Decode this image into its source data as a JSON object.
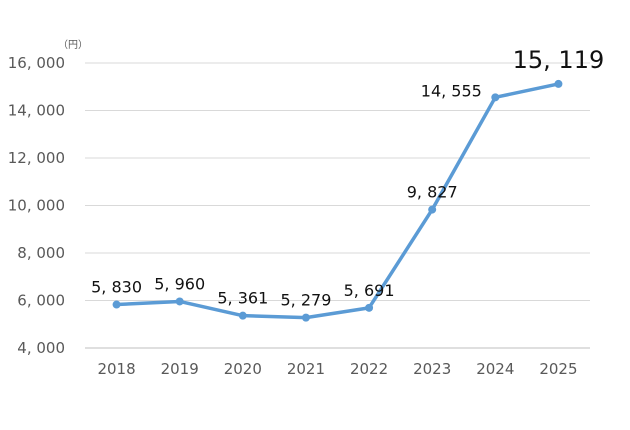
{
  "chart_data": {
    "type": "line",
    "unit": "（円）",
    "categories": [
      "2018",
      "2019",
      "2020",
      "2021",
      "2022",
      "2023",
      "2024",
      "2025"
    ],
    "series": [
      {
        "values": [
          5830,
          5960,
          5361,
          5279,
          5691,
          9827,
          14555,
          15119
        ]
      }
    ],
    "data_labels": [
      "5, 830",
      "5, 960",
      "5, 361",
      "5, 279",
      "5, 691",
      "9, 827",
      "14, 555",
      "15, 119"
    ],
    "ylim": [
      4000,
      16000
    ],
    "yticks": [
      4000,
      6000,
      8000,
      10000,
      12000,
      14000,
      16000
    ],
    "ytick_labels": [
      "4, 000",
      "6, 000",
      "8, 000",
      "10, 000",
      "12, 000",
      "14, 000",
      "16, 000"
    ],
    "grid": true,
    "line_color": "#5B9BD5"
  }
}
